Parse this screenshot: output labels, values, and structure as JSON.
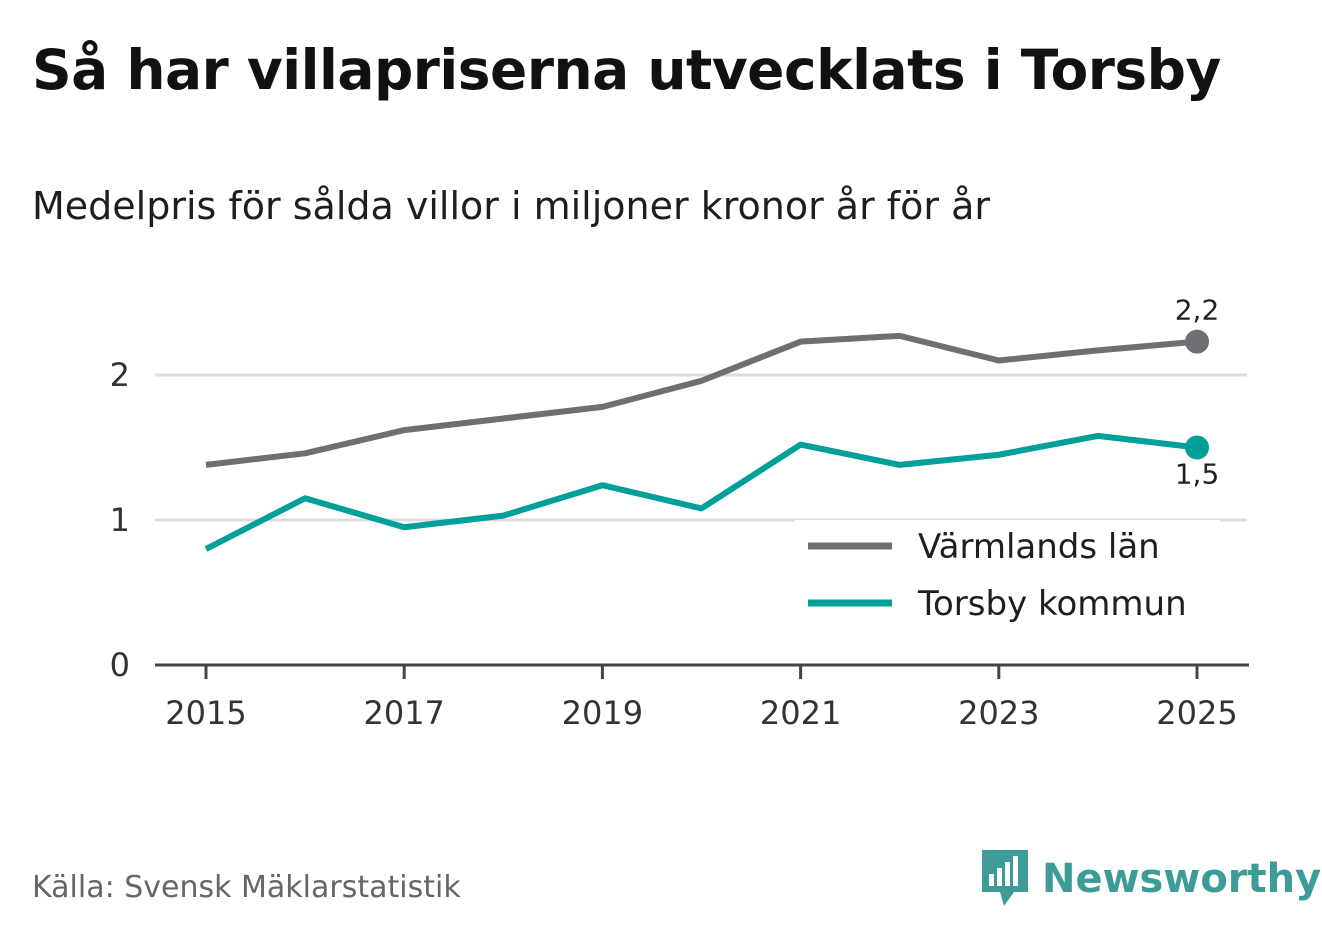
{
  "title": "Så har villapriserna utvecklats i Torsby",
  "subtitle": "Medelpris för sålda villor i miljoner kronor år för år",
  "source": "Källa: Svensk Mäklarstatistik",
  "brand": "Newsworthy",
  "colors": {
    "varmland": "#6e6e73",
    "torsby": "#00a09a",
    "grid": "#dcdcdc",
    "axis": "#444444",
    "brand": "#3d9c98"
  },
  "chart_data": {
    "type": "line",
    "title": "Så har villapriserna utvecklats i Torsby",
    "subtitle": "Medelpris för sålda villor i miljoner kronor år för år",
    "xlabel": "",
    "ylabel": "",
    "x": [
      2015,
      2016,
      2017,
      2018,
      2019,
      2020,
      2021,
      2022,
      2023,
      2024,
      2025
    ],
    "xticks": [
      "2015",
      "2017",
      "2019",
      "2021",
      "2023",
      "2025"
    ],
    "yticks": [
      "0",
      "1",
      "2"
    ],
    "ylim": [
      0,
      2.5
    ],
    "xlim": [
      2014.5,
      2025.5
    ],
    "grid": true,
    "legend_position": "bottom-right",
    "series": [
      {
        "name": "Värmlands län",
        "key": "varmland",
        "values": [
          1.38,
          1.46,
          1.62,
          1.7,
          1.78,
          1.96,
          2.23,
          2.27,
          2.1,
          2.17,
          2.23
        ],
        "end_label": "2,2"
      },
      {
        "name": "Torsby kommun",
        "key": "torsby",
        "values": [
          0.8,
          1.15,
          0.95,
          1.03,
          1.24,
          1.08,
          1.52,
          1.38,
          1.45,
          1.58,
          1.5
        ],
        "end_label": "1,5"
      }
    ]
  }
}
